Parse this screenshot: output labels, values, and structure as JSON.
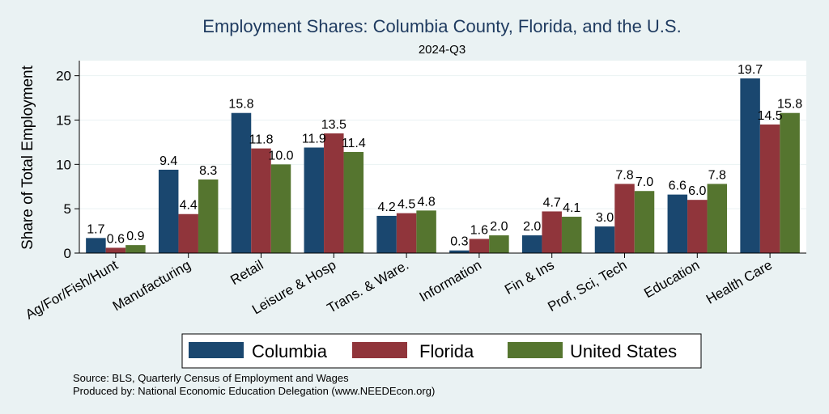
{
  "chart_data": {
    "type": "bar",
    "title": "Employment Shares: Columbia County, Florida, and the U.S.",
    "subtitle": "2024-Q3",
    "ylabel": "Share of Total Employment",
    "xlabel": "",
    "ylim": [
      0,
      21.7
    ],
    "yticks": [
      0,
      5,
      10,
      15,
      20
    ],
    "grid": true,
    "legend_position": "bottom",
    "categories": [
      "Ag/For/Fish/Hunt",
      "Manufacturing",
      "Retail",
      "Leisure & Hosp",
      "Trans. & Ware.",
      "Information",
      "Fin & Ins",
      "Prof, Sci, Tech",
      "Education",
      "Health Care"
    ],
    "series": [
      {
        "name": "Columbia",
        "color": "#1a476f",
        "values": [
          1.7,
          9.4,
          15.8,
          11.9,
          4.2,
          0.3,
          2.0,
          3.0,
          6.6,
          19.7
        ],
        "labels": [
          "1.7",
          "9.4",
          "15.8",
          "11.9",
          "4.2",
          "0.3",
          "2.0",
          "3.0",
          "6.6",
          "19.7"
        ]
      },
      {
        "name": "Florida",
        "color": "#90353b",
        "values": [
          0.6,
          4.4,
          11.8,
          13.5,
          4.5,
          1.6,
          4.7,
          7.8,
          6.0,
          14.5
        ],
        "labels": [
          "0.6",
          "4.4",
          "11.8",
          "13.5",
          "4.5",
          "1.6",
          "4.7",
          "7.8",
          "6.0",
          "14.5"
        ]
      },
      {
        "name": "United States",
        "color": "#55752f",
        "values": [
          0.9,
          8.3,
          10.0,
          11.4,
          4.8,
          2.0,
          4.1,
          7.0,
          7.8,
          15.8
        ],
        "labels": [
          "0.9",
          "8.3",
          "10.0",
          "11.4",
          "4.8",
          "2.0",
          "4.1",
          "7.0",
          "7.8",
          "15.8"
        ]
      }
    ],
    "notes": [
      "Source: BLS, Quarterly Census of Employment and Wages",
      "Produced by: National Economic Education Delegation (www.NEEDEcon.org)"
    ]
  }
}
